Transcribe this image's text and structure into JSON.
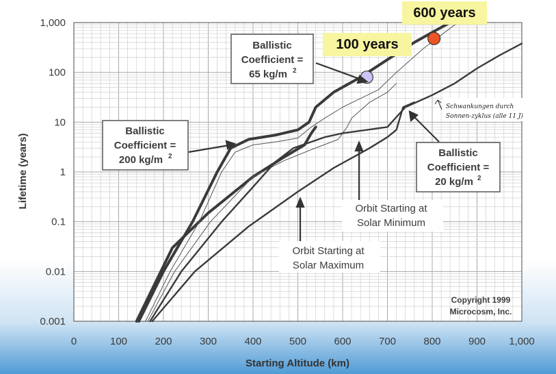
{
  "chart_data": {
    "type": "line",
    "xlabel": "Starting Altitude (km)",
    "ylabel": "Lifetime (years)",
    "x_ticks": [
      "0",
      "100",
      "200",
      "300",
      "400",
      "500",
      "600",
      "700",
      "800",
      "900",
      "1,000"
    ],
    "y_ticks": [
      "0.001",
      "0.01",
      "0.1",
      "1",
      "10",
      "100",
      "1,000"
    ],
    "xlim": [
      0,
      1000
    ],
    "ylim": [
      0.001,
      1000
    ],
    "y_scale": "log",
    "grid": true,
    "series": [
      {
        "key": "bc200_solar_min",
        "color": "#3a3a3a",
        "width": "thick",
        "points": [
          [
            145,
            0.001
          ],
          [
            200,
            0.01
          ],
          [
            265,
            0.1
          ],
          [
            320,
            1
          ],
          [
            350,
            3
          ],
          [
            390,
            4.5
          ],
          [
            450,
            5.5
          ],
          [
            500,
            7
          ],
          [
            525,
            10
          ],
          [
            540,
            20
          ],
          [
            580,
            40
          ],
          [
            640,
            80
          ],
          [
            700,
            180
          ],
          [
            760,
            400
          ],
          [
            820,
            800
          ],
          [
            840,
            1000
          ]
        ]
      },
      {
        "key": "bc200_solar_max",
        "color": "#3a3a3a",
        "width": "thick",
        "points": [
          [
            140,
            0.001
          ],
          [
            220,
            0.03
          ],
          [
            300,
            0.15
          ],
          [
            400,
            0.8
          ],
          [
            470,
            2
          ],
          [
            515,
            3.5
          ],
          [
            530,
            6
          ],
          [
            540,
            8
          ]
        ]
      },
      {
        "key": "bc65_solar_min",
        "color": "#555555",
        "width": "thin",
        "points": [
          [
            160,
            0.001
          ],
          [
            215,
            0.01
          ],
          [
            280,
            0.1
          ],
          [
            330,
            1
          ],
          [
            360,
            2.5
          ],
          [
            400,
            3.5
          ],
          [
            450,
            4
          ],
          [
            500,
            4.8
          ],
          [
            530,
            8
          ],
          [
            560,
            12
          ],
          [
            600,
            20
          ],
          [
            640,
            30
          ],
          [
            680,
            45
          ],
          [
            720,
            100
          ],
          [
            780,
            300
          ],
          [
            850,
            900
          ],
          [
            870,
            1000
          ]
        ]
      },
      {
        "key": "bc65_solar_max",
        "color": "#555555",
        "width": "thin",
        "points": [
          [
            165,
            0.001
          ],
          [
            225,
            0.01
          ],
          [
            305,
            0.1
          ],
          [
            400,
            0.8
          ],
          [
            470,
            1.7
          ],
          [
            530,
            2.8
          ],
          [
            590,
            4.5
          ],
          [
            610,
            8
          ],
          [
            620,
            12
          ],
          [
            660,
            25
          ],
          [
            700,
            40
          ],
          [
            720,
            60
          ]
        ]
      },
      {
        "key": "bc20_solar_min",
        "color": "#3a3a3a",
        "width": "medium",
        "points": [
          [
            170,
            0.001
          ],
          [
            240,
            0.01
          ],
          [
            330,
            0.1
          ],
          [
            400,
            0.5
          ],
          [
            450,
            1.6
          ],
          [
            490,
            3
          ],
          [
            560,
            5
          ],
          [
            600,
            6
          ],
          [
            700,
            8
          ],
          [
            740,
            20
          ],
          [
            800,
            35
          ],
          [
            850,
            60
          ],
          [
            900,
            120
          ],
          [
            950,
            220
          ],
          [
            1000,
            380
          ]
        ]
      },
      {
        "key": "bc20_solar_max",
        "color": "#3a3a3a",
        "width": "medium",
        "points": [
          [
            175,
            0.001
          ],
          [
            270,
            0.01
          ],
          [
            390,
            0.08
          ],
          [
            500,
            0.4
          ],
          [
            580,
            1.2
          ],
          [
            660,
            3
          ],
          [
            700,
            5
          ],
          [
            720,
            7
          ],
          [
            735,
            20
          ],
          [
            760,
            25
          ]
        ]
      }
    ],
    "markers": [
      {
        "x": 654,
        "y": 80,
        "color": "#c9c5f4"
      },
      {
        "x": 804,
        "y": 480,
        "color": "#ee5524"
      }
    ]
  },
  "labels": {
    "bc65": {
      "line1": "Ballistic",
      "line2": "Coefficient =",
      "line3": "65 kg/m",
      "sup": "2"
    },
    "bc200": {
      "line1": "Ballistic",
      "line2": "Coefficient =",
      "line3": "200 kg/m",
      "sup": "2"
    },
    "bc20": {
      "line1": "Ballistic",
      "line2": "Coefficient =",
      "line3": "20 kg/m",
      "sup": "2"
    },
    "solar_min": {
      "line1": "Orbit Starting at",
      "line2": "Solar Minimum"
    },
    "solar_max": {
      "line1": "Orbit Starting at",
      "line2": "Solar Maximum"
    },
    "copyright": {
      "line1": "Copyright 1999",
      "line2": "Microcosm, Inc."
    },
    "handwritten": {
      "line1": "Schwankungen durch",
      "line2": "Sonnen-zyklus (alle 11 J)"
    },
    "years_600": "600 years",
    "years_100": "100 years"
  },
  "colors": {
    "highlight_box": "#f7f5a0",
    "grid": "#cfcfcf",
    "frame": "#666666"
  }
}
